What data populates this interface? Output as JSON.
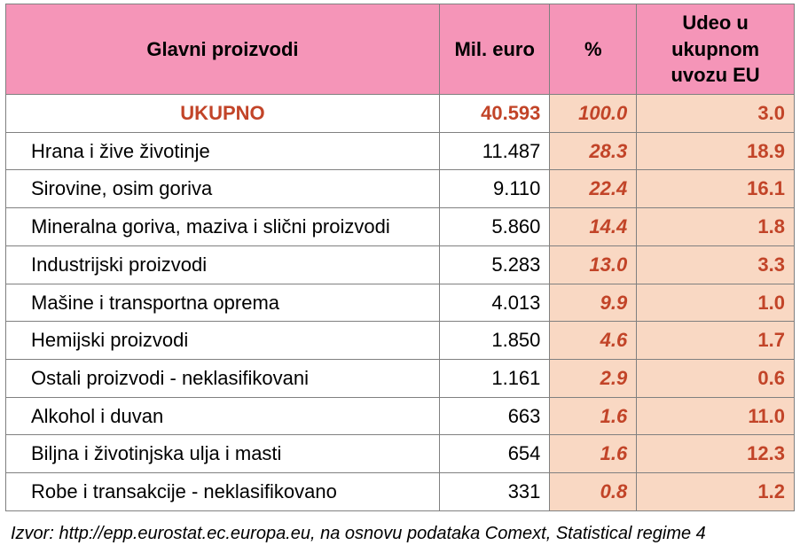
{
  "colors": {
    "header_bg": "#f595b8",
    "shaded_bg": "#f9d8c3",
    "plain_bg": "#ffffff",
    "border": "#808080",
    "accent": "#c24428",
    "text": "#000000"
  },
  "headers": {
    "product": "Glavni proizvodi",
    "mil_euro": "Mil. euro",
    "percent": "%",
    "share_eu": "Udeo u ukupnom uvozu  EU"
  },
  "total_row": {
    "label": "UKUPNO",
    "mil_euro": "40.593",
    "percent": "100.0",
    "share_eu": "3.0"
  },
  "rows": [
    {
      "label": "Hrana i žive životinje",
      "mil_euro": "11.487",
      "percent": "28.3",
      "share_eu": "18.9"
    },
    {
      "label": "Sirovine, osim goriva",
      "mil_euro": "9.110",
      "percent": "22.4",
      "share_eu": "16.1"
    },
    {
      "label": "Mineralna goriva, maziva i slični proizvodi",
      "mil_euro": "5.860",
      "percent": "14.4",
      "share_eu": "1.8"
    },
    {
      "label": "Industrijski proizvodi",
      "mil_euro": "5.283",
      "percent": "13.0",
      "share_eu": "3.3"
    },
    {
      "label": "Mašine i transportna oprema",
      "mil_euro": "4.013",
      "percent": "9.9",
      "share_eu": "1.0"
    },
    {
      "label": "Hemijski proizvodi",
      "mil_euro": "1.850",
      "percent": "4.6",
      "share_eu": "1.7"
    },
    {
      "label": "Ostali proizvodi - neklasifikovani",
      "mil_euro": "1.161",
      "percent": "2.9",
      "share_eu": "0.6"
    },
    {
      "label": "Alkohol i duvan",
      "mil_euro": "663",
      "percent": "1.6",
      "share_eu": "11.0"
    },
    {
      "label": "Biljna i životinjska ulja i masti",
      "mil_euro": "654",
      "percent": "1.6",
      "share_eu": "12.3"
    },
    {
      "label": "Robe i transakcije - neklasifikovano",
      "mil_euro": "331",
      "percent": "0.8",
      "share_eu": "1.2"
    }
  ],
  "source": "Izvor: http://epp.eurostat.ec.europa.eu, na osnovu podataka Comext, Statistical regime 4"
}
